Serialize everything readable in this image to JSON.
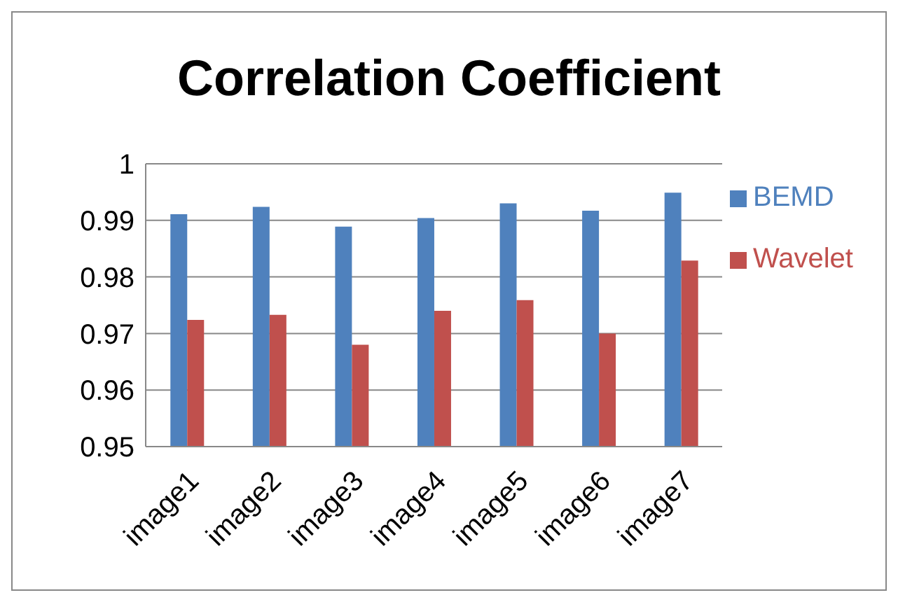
{
  "chart_data": {
    "type": "bar",
    "title": "Correlation Coefficient",
    "categories": [
      "image1",
      "image2",
      "image3",
      "image4",
      "image5",
      "image6",
      "image7"
    ],
    "series": [
      {
        "name": "BEMD",
        "color": "#4f81bd",
        "values": [
          0.9911,
          0.9924,
          0.9889,
          0.9904,
          0.993,
          0.9917,
          0.9949
        ]
      },
      {
        "name": "Wavelet",
        "color": "#c0504d",
        "values": [
          0.9724,
          0.9733,
          0.968,
          0.974,
          0.9759,
          0.97,
          0.9829
        ]
      }
    ],
    "ylim": [
      0.95,
      1
    ],
    "yticks": [
      0.95,
      0.96,
      0.97,
      0.98,
      0.99,
      1
    ],
    "grid": "y",
    "legend": "right"
  }
}
